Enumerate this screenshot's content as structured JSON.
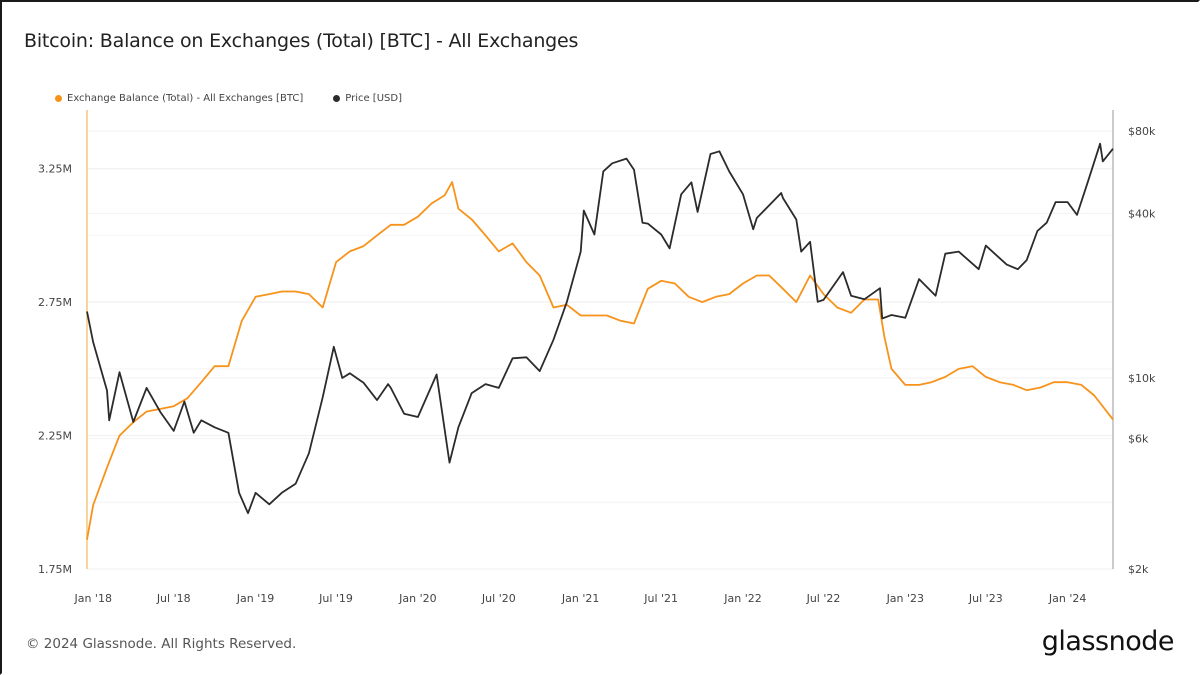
{
  "chart_data": {
    "type": "line",
    "title": "Bitcoin: Balance on Exchanges (Total) [BTC] - All Exchanges",
    "legend_placement": "top-left",
    "grid": true,
    "xlim": [
      "2017-12-18",
      "2024-04-12"
    ],
    "x_ticks": [
      {
        "date": "2018-01-01",
        "label": "Jan '18"
      },
      {
        "date": "2018-07-01",
        "label": "Jul '18"
      },
      {
        "date": "2019-01-01",
        "label": "Jan '19"
      },
      {
        "date": "2019-07-01",
        "label": "Jul '19"
      },
      {
        "date": "2020-01-01",
        "label": "Jan '20"
      },
      {
        "date": "2020-07-01",
        "label": "Jul '20"
      },
      {
        "date": "2021-01-01",
        "label": "Jan '21"
      },
      {
        "date": "2021-07-01",
        "label": "Jul '21"
      },
      {
        "date": "2022-01-01",
        "label": "Jan '22"
      },
      {
        "date": "2022-07-01",
        "label": "Jul '22"
      },
      {
        "date": "2023-01-01",
        "label": "Jan '23"
      },
      {
        "date": "2023-07-01",
        "label": "Jul '23"
      },
      {
        "date": "2024-01-01",
        "label": "Jan '24"
      }
    ],
    "y_left": {
      "scale": "linear",
      "ylim": [
        1.75,
        3.47
      ],
      "unit": "M BTC",
      "ticks": [
        {
          "value": 1.75,
          "label": "1.75M"
        },
        {
          "value": 2.25,
          "label": "2.25M"
        },
        {
          "value": 2.75,
          "label": "2.75M"
        },
        {
          "value": 3.25,
          "label": "3.25M"
        }
      ]
    },
    "y_right": {
      "scale": "log",
      "ylim": [
        2000,
        95600
      ],
      "unit": "USD",
      "ticks": [
        {
          "value": 2000,
          "label": "$2k"
        },
        {
          "value": 6000,
          "label": "$6k"
        },
        {
          "value": 10000,
          "label": "$10k"
        },
        {
          "value": 40000,
          "label": "$40k"
        },
        {
          "value": 80000,
          "label": "$80k"
        }
      ]
    },
    "series": [
      {
        "name": "Exchange Balance (Total) - All Exchanges [BTC]",
        "axis": "left",
        "color": "#f7931a",
        "x": [
          "2017-12-18",
          "2018-01-01",
          "2018-02-01",
          "2018-03-01",
          "2018-04-01",
          "2018-05-01",
          "2018-06-01",
          "2018-07-01",
          "2018-08-01",
          "2018-09-01",
          "2018-10-01",
          "2018-11-01",
          "2018-12-01",
          "2019-01-01",
          "2019-02-01",
          "2019-03-01",
          "2019-04-01",
          "2019-05-01",
          "2019-06-01",
          "2019-07-01",
          "2019-08-01",
          "2019-09-01",
          "2019-10-01",
          "2019-11-01",
          "2019-12-01",
          "2020-01-01",
          "2020-02-01",
          "2020-03-01",
          "2020-03-18",
          "2020-04-01",
          "2020-05-01",
          "2020-06-01",
          "2020-07-01",
          "2020-08-01",
          "2020-09-01",
          "2020-10-01",
          "2020-11-01",
          "2020-12-01",
          "2021-01-01",
          "2021-02-01",
          "2021-03-01",
          "2021-04-01",
          "2021-05-01",
          "2021-06-01",
          "2021-07-01",
          "2021-08-01",
          "2021-09-01",
          "2021-10-01",
          "2021-11-01",
          "2021-12-01",
          "2022-01-01",
          "2022-02-01",
          "2022-03-01",
          "2022-04-01",
          "2022-05-01",
          "2022-06-01",
          "2022-07-01",
          "2022-08-01",
          "2022-09-01",
          "2022-10-01",
          "2022-11-01",
          "2022-11-15",
          "2022-12-01",
          "2023-01-01",
          "2023-02-01",
          "2023-03-01",
          "2023-04-01",
          "2023-05-01",
          "2023-06-01",
          "2023-07-01",
          "2023-08-01",
          "2023-09-01",
          "2023-10-01",
          "2023-11-01",
          "2023-12-01",
          "2024-01-01",
          "2024-02-01",
          "2024-03-01",
          "2024-04-12"
        ],
        "values": [
          1.86,
          1.99,
          2.13,
          2.25,
          2.3,
          2.34,
          2.35,
          2.36,
          2.39,
          2.45,
          2.51,
          2.51,
          2.68,
          2.77,
          2.78,
          2.79,
          2.79,
          2.78,
          2.73,
          2.9,
          2.94,
          2.96,
          3.0,
          3.04,
          3.04,
          3.07,
          3.12,
          3.15,
          3.2,
          3.1,
          3.06,
          3.0,
          2.94,
          2.97,
          2.9,
          2.85,
          2.73,
          2.74,
          2.7,
          2.7,
          2.7,
          2.68,
          2.67,
          2.8,
          2.83,
          2.82,
          2.77,
          2.75,
          2.77,
          2.78,
          2.82,
          2.85,
          2.85,
          2.8,
          2.75,
          2.85,
          2.78,
          2.73,
          2.71,
          2.76,
          2.76,
          2.62,
          2.5,
          2.44,
          2.44,
          2.45,
          2.47,
          2.5,
          2.51,
          2.47,
          2.45,
          2.44,
          2.42,
          2.43,
          2.45,
          2.45,
          2.44,
          2.4,
          2.31
        ]
      },
      {
        "name": "Price [USD]",
        "axis": "right",
        "color": "#2b2b2b",
        "x": [
          "2017-12-18",
          "2018-01-01",
          "2018-02-01",
          "2018-02-06",
          "2018-03-01",
          "2018-04-01",
          "2018-05-01",
          "2018-06-01",
          "2018-07-01",
          "2018-07-25",
          "2018-08-15",
          "2018-09-01",
          "2018-10-01",
          "2018-11-01",
          "2018-11-25",
          "2018-12-15",
          "2019-01-01",
          "2019-02-01",
          "2019-03-01",
          "2019-04-01",
          "2019-05-01",
          "2019-06-01",
          "2019-06-26",
          "2019-07-15",
          "2019-08-01",
          "2019-09-01",
          "2019-10-01",
          "2019-10-26",
          "2019-11-01",
          "2019-12-01",
          "2020-01-01",
          "2020-02-12",
          "2020-03-12",
          "2020-04-01",
          "2020-05-01",
          "2020-06-01",
          "2020-07-01",
          "2020-08-01",
          "2020-09-01",
          "2020-10-01",
          "2020-11-01",
          "2020-12-01",
          "2021-01-01",
          "2021-01-08",
          "2021-02-01",
          "2021-02-21",
          "2021-03-13",
          "2021-04-14",
          "2021-05-01",
          "2021-05-20",
          "2021-06-01",
          "2021-07-01",
          "2021-07-20",
          "2021-08-15",
          "2021-09-07",
          "2021-09-21",
          "2021-10-20",
          "2021-11-09",
          "2021-12-01",
          "2022-01-01",
          "2022-01-24",
          "2022-02-01",
          "2022-03-28",
          "2022-04-01",
          "2022-05-01",
          "2022-05-12",
          "2022-06-01",
          "2022-06-18",
          "2022-07-01",
          "2022-08-14",
          "2022-09-01",
          "2022-10-01",
          "2022-11-05",
          "2022-11-10",
          "2022-12-01",
          "2023-01-01",
          "2023-02-01",
          "2023-03-10",
          "2023-04-01",
          "2023-05-01",
          "2023-06-15",
          "2023-07-01",
          "2023-08-17",
          "2023-09-11",
          "2023-10-01",
          "2023-10-25",
          "2023-11-15",
          "2023-12-05",
          "2024-01-01",
          "2024-01-22",
          "2024-02-15",
          "2024-03-14",
          "2024-03-20",
          "2024-04-12"
        ],
        "values": [
          17500,
          13500,
          9000,
          7000,
          10500,
          6900,
          9200,
          7500,
          6400,
          8200,
          6300,
          7000,
          6600,
          6300,
          3800,
          3200,
          3800,
          3450,
          3800,
          4100,
          5300,
          8500,
          13000,
          10000,
          10400,
          9600,
          8300,
          9500,
          9200,
          7400,
          7200,
          10300,
          4900,
          6600,
          8800,
          9500,
          9200,
          11800,
          11900,
          10600,
          13800,
          19000,
          29000,
          41000,
          33500,
          57000,
          61000,
          63500,
          57800,
          37000,
          36700,
          33500,
          29800,
          47000,
          52000,
          40500,
          66000,
          67500,
          57000,
          47000,
          35000,
          38500,
          47500,
          45500,
          38000,
          29000,
          31500,
          19000,
          19300,
          24400,
          20000,
          19400,
          21300,
          16500,
          17000,
          16600,
          23000,
          20000,
          28500,
          29000,
          25000,
          30500,
          26000,
          25000,
          27000,
          34500,
          37000,
          44000,
          44000,
          39500,
          52000,
          72000,
          62000,
          69000
        ]
      }
    ]
  },
  "footer": {
    "copyright": "© 2024 Glassnode. All Rights Reserved.",
    "logo": "glassnode"
  }
}
